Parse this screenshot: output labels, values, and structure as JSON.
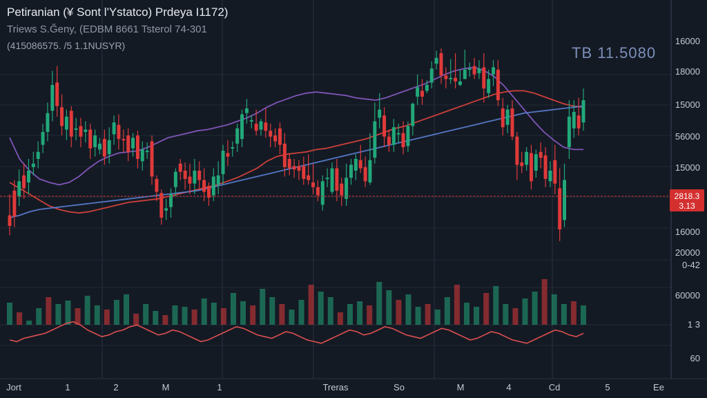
{
  "header": {
    "title": "Petiranian (¥ Sont l'Ystatco) Prdeya I1172)",
    "subtitle": "Triews S.Ğeny, (EDBM 8661 Tsterol 74-301",
    "info": "(415086575. /5 1.1NUSYR)",
    "big_price": "ТВ 11.5080"
  },
  "colors": {
    "background": "#141a24",
    "grid": "#2a3342",
    "up": "#22a87a",
    "down": "#e03a3a",
    "ma_fast": "#8b5cc8",
    "ma_mid": "#e0453d",
    "ma_slow": "#5b82d8",
    "oscillator": "#e05050",
    "price_line": "#d03030",
    "price_badge": "#d42f2f"
  },
  "price_axis": {
    "labels": [
      "16000",
      "18000",
      "15000",
      "56000",
      "15000",
      "16000",
      "20000",
      "0-42",
      "60000",
      "1 3",
      "60"
    ],
    "badge_top": "2818.3",
    "badge_bottom": "3.13"
  },
  "x_axis": {
    "labels": [
      "Jort",
      "1",
      "2",
      "M",
      "1",
      "Treras",
      "So",
      "M",
      "4",
      "Cd",
      "5",
      "Ee"
    ]
  },
  "chart_data": {
    "type": "candlestick",
    "title": "Petiranian (¥ Sont l'Ystatco) Prdeya I1172)",
    "ohlc": [
      [
        272,
        263,
        290,
        255
      ],
      [
        293,
        271,
        302,
        262
      ],
      [
        288,
        301,
        311,
        280
      ],
      [
        306,
        295,
        316,
        286
      ],
      [
        300,
        310,
        320,
        290
      ],
      [
        313,
        316,
        326,
        306
      ],
      [
        320,
        326,
        335,
        312
      ],
      [
        332,
        343,
        350,
        325
      ],
      [
        343,
        359,
        368,
        335
      ],
      [
        361,
        383,
        395,
        352
      ],
      [
        385,
        365,
        399,
        356
      ],
      [
        364,
        348,
        375,
        340
      ],
      [
        345,
        356,
        362,
        336
      ],
      [
        361,
        339,
        365,
        330
      ],
      [
        345,
        346,
        355,
        336
      ],
      [
        348,
        339,
        355,
        330
      ],
      [
        343,
        345,
        352,
        334
      ],
      [
        345,
        329,
        350,
        320
      ],
      [
        330,
        340,
        345,
        322
      ],
      [
        328,
        333,
        338,
        324
      ],
      [
        337,
        322,
        345,
        315
      ],
      [
        324,
        336,
        347,
        316
      ],
      [
        341,
        351,
        357,
        332
      ],
      [
        349,
        337,
        358,
        328
      ],
      [
        337,
        336,
        345,
        326
      ],
      [
        340,
        326,
        346,
        318
      ],
      [
        329,
        338,
        342,
        322
      ],
      [
        340,
        320,
        344,
        312
      ],
      [
        318,
        328,
        335,
        310
      ],
      [
        326,
        327,
        334,
        320
      ],
      [
        335,
        305,
        340,
        298
      ],
      [
        303,
        292,
        306,
        284
      ],
      [
        291,
        270,
        294,
        264
      ],
      [
        276,
        278,
        286,
        268
      ],
      [
        279,
        290,
        295,
        270
      ],
      [
        296,
        309,
        312,
        288
      ],
      [
        316,
        309,
        320,
        302
      ],
      [
        310,
        303,
        317,
        294
      ],
      [
        305,
        299,
        316,
        290
      ],
      [
        299,
        310,
        320,
        290
      ],
      [
        310,
        302,
        318,
        294
      ],
      [
        302,
        292,
        312,
        284
      ],
      [
        297,
        287,
        300,
        280
      ],
      [
        289,
        305,
        312,
        284
      ],
      [
        298,
        306,
        318,
        290
      ],
      [
        307,
        327,
        332,
        298
      ],
      [
        325,
        322,
        336,
        314
      ],
      [
        329,
        330,
        335,
        322
      ],
      [
        333,
        346,
        350,
        326
      ],
      [
        337,
        358,
        362,
        330
      ],
      [
        359,
        363,
        371,
        350
      ],
      [
        352,
        353,
        357,
        346
      ],
      [
        350,
        344,
        362,
        340
      ],
      [
        345,
        352,
        354,
        340
      ],
      [
        351,
        344,
        363,
        338
      ],
      [
        344,
        339,
        350,
        330
      ],
      [
        340,
        335,
        346,
        330
      ],
      [
        346,
        332,
        351,
        324
      ],
      [
        333,
        313,
        342,
        305
      ],
      [
        320,
        312,
        325,
        306
      ],
      [
        314,
        311,
        320,
        304
      ],
      [
        314,
        310,
        319,
        302
      ],
      [
        314,
        303,
        322,
        298
      ],
      [
        306,
        302,
        324,
        298
      ],
      [
        300,
        296,
        316,
        290
      ],
      [
        296,
        289,
        302,
        284
      ],
      [
        281,
        301,
        306,
        276
      ],
      [
        304,
        304,
        312,
        296
      ],
      [
        292,
        312,
        317,
        290
      ],
      [
        312,
        293,
        320,
        284
      ],
      [
        299,
        289,
        304,
        280
      ],
      [
        286,
        304,
        316,
        280
      ],
      [
        304,
        315,
        320,
        298
      ],
      [
        310,
        320,
        324,
        302
      ],
      [
        319,
        312,
        332,
        308
      ],
      [
        313,
        301,
        322,
        296
      ],
      [
        300,
        319,
        342,
        298
      ],
      [
        321,
        352,
        368,
        316
      ],
      [
        355,
        362,
        376,
        346
      ],
      [
        357,
        339,
        364,
        330
      ],
      [
        339,
        332,
        345,
        326
      ],
      [
        332,
        347,
        354,
        326
      ],
      [
        342,
        342,
        350,
        334
      ],
      [
        342,
        330,
        352,
        324
      ],
      [
        331,
        348,
        352,
        326
      ],
      [
        348,
        367,
        368,
        340
      ],
      [
        373,
        381,
        392,
        366
      ],
      [
        378,
        373,
        388,
        366
      ],
      [
        378,
        383,
        387,
        376
      ],
      [
        385,
        397,
        403,
        380
      ],
      [
        401,
        406,
        412,
        396
      ],
      [
        410,
        391,
        414,
        384
      ],
      [
        391,
        388,
        398,
        380
      ],
      [
        388,
        389,
        405,
        384
      ],
      [
        389,
        386,
        410,
        380
      ],
      [
        383,
        386,
        396,
        382
      ],
      [
        388,
        396,
        413,
        388
      ],
      [
        397,
        397,
        402,
        390
      ],
      [
        399,
        392,
        406,
        388
      ],
      [
        393,
        397,
        404,
        388
      ],
      [
        398,
        380,
        410,
        368
      ],
      [
        376,
        388,
        396,
        372
      ],
      [
        392,
        398,
        404,
        382
      ],
      [
        396,
        370,
        404,
        365
      ],
      [
        363,
        347,
        372,
        340
      ],
      [
        349,
        362,
        366,
        342
      ],
      [
        363,
        339,
        370,
        336
      ],
      [
        339,
        315,
        343,
        302
      ],
      [
        317,
        314,
        326,
        308
      ],
      [
        315,
        326,
        330,
        310
      ],
      [
        325,
        301,
        332,
        294
      ],
      [
        310,
        324,
        328,
        304
      ],
      [
        326,
        321,
        334,
        312
      ],
      [
        323,
        303,
        330,
        296
      ],
      [
        301,
        310,
        318,
        296
      ],
      [
        319,
        299,
        332,
        290
      ],
      [
        295,
        260,
        312,
        250
      ],
      [
        268,
        302,
        316,
        262
      ],
      [
        330,
        356,
        370,
        320
      ],
      [
        346,
        360,
        370,
        338
      ],
      [
        357,
        346,
        372,
        340
      ],
      [
        351,
        370,
        380,
        344
      ]
    ],
    "moving_averages": [
      {
        "name": "",
        "values": [
          338,
          320,
          310,
          303,
          300,
          298,
          300,
          305,
          312,
          318,
          322,
          325,
          326,
          327,
          330,
          334,
          338,
          340,
          342,
          344,
          345,
          347,
          349,
          352,
          355,
          359,
          364,
          368,
          371,
          374,
          376,
          377,
          376,
          375,
          374,
          372,
          371,
          370,
          372,
          375,
          378,
          381,
          384,
          388,
          392,
          395,
          397,
          398,
          395,
          390,
          382,
          372,
          362,
          352,
          343,
          336,
          330,
          328,
          328
        ]
      },
      {
        "name": "",
        "values": [
          300,
          295,
          290,
          285,
          280,
          277,
          275,
          274,
          275,
          277,
          279,
          281,
          283,
          284,
          285,
          286,
          288,
          290,
          292,
          294,
          296,
          298,
          301,
          304,
          308,
          312,
          318,
          322,
          324,
          325,
          326,
          328,
          329,
          331,
          333,
          335,
          337,
          340,
          343,
          346,
          348,
          351,
          354,
          357,
          360,
          363,
          366,
          369,
          372,
          375,
          377,
          378,
          378,
          376,
          373,
          370,
          367,
          365,
          364
        ]
      },
      {
        "name": "",
        "values": [
          270,
          272,
          275,
          277,
          278,
          279,
          280,
          281,
          282,
          283,
          284,
          285,
          286,
          287,
          288,
          289,
          290,
          291,
          292,
          293,
          295,
          297,
          299,
          301,
          303,
          305,
          307,
          309,
          311,
          313,
          315,
          317,
          319,
          321,
          323,
          325,
          327,
          329,
          331,
          333,
          335,
          337,
          339,
          341,
          343,
          345,
          347,
          349,
          351,
          353,
          355,
          357,
          359,
          360,
          361,
          362,
          363,
          364,
          365
        ]
      }
    ],
    "volume": [
      32,
      18,
      6,
      24,
      40,
      30,
      35,
      24,
      42,
      28,
      22,
      36,
      44,
      16,
      30,
      20,
      14,
      28,
      26,
      22,
      38,
      32,
      24,
      46,
      34,
      28,
      52,
      40,
      30,
      22,
      36,
      58,
      48,
      40,
      18,
      30,
      34,
      28,
      62,
      50,
      36,
      44,
      26,
      30,
      22,
      40,
      58,
      32,
      26,
      46,
      56,
      30,
      24,
      38,
      48,
      66,
      44,
      30,
      34,
      28
    ],
    "volume_ylim": [
      0,
      80
    ],
    "oscillator": [
      40,
      38,
      42,
      44,
      46,
      48,
      52,
      56,
      60,
      62,
      58,
      52,
      48,
      44,
      46,
      50,
      52,
      56,
      58,
      54,
      50,
      46,
      48,
      52,
      50,
      46,
      42,
      38,
      40,
      44,
      48,
      52,
      56,
      54,
      50,
      46,
      44,
      42,
      46,
      50,
      48,
      44,
      40,
      38,
      36,
      40,
      44,
      48,
      52,
      50,
      46,
      48,
      52,
      56,
      54,
      50,
      46,
      44,
      42,
      46,
      50,
      54,
      52,
      48,
      44,
      40,
      42,
      46,
      50,
      48,
      44,
      40,
      38,
      36,
      40,
      44,
      48,
      52,
      50,
      46,
      44,
      48
    ],
    "oscillator_ylim": [
      0,
      100
    ],
    "price_ylim": [
      220,
      420
    ],
    "current_price": 2818.3,
    "ylabel_ticks": [
      "16000",
      "18000",
      "15000",
      "56000",
      "15000",
      "16000",
      "20000",
      "0-42",
      "60000",
      "1 3",
      "60"
    ],
    "xlabels": [
      "Jort",
      "1",
      "2",
      "M",
      "1",
      "Treras",
      "So",
      "M",
      "4",
      "Cd",
      "5",
      "Ee"
    ],
    "grid": true,
    "legend": "none"
  }
}
